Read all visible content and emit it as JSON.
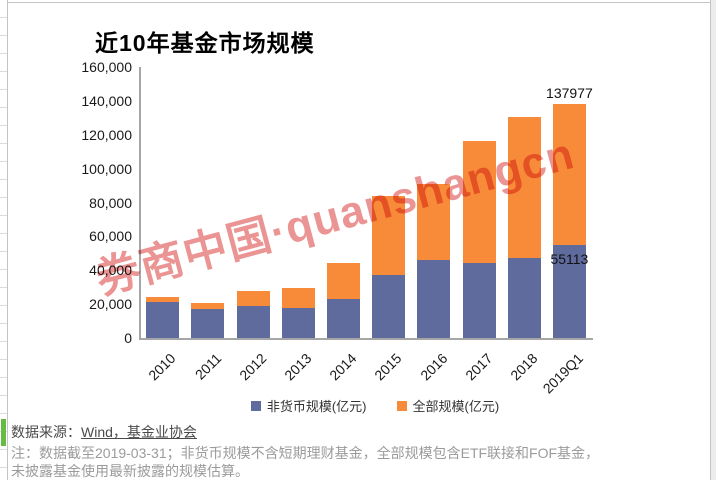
{
  "watermark": "券商中国·quanshangcn",
  "chart_data": {
    "type": "bar",
    "title": "近10年基金市场规模",
    "bar_style": "overlapped — total bar behind, non-monetary bar in front",
    "categories": [
      "2010",
      "2011",
      "2012",
      "2013",
      "2014",
      "2015",
      "2016",
      "2017",
      "2018",
      "2019Q1"
    ],
    "series": [
      {
        "name": "非货币规模(亿元)",
        "color": "#5F6B9D",
        "values": [
          21200,
          17100,
          18900,
          17700,
          23000,
          37200,
          46000,
          44300,
          47200,
          55113
        ]
      },
      {
        "name": "全部规模(亿元)",
        "color": "#F88B3A",
        "values": [
          24200,
          20700,
          27700,
          29500,
          44300,
          83800,
          90900,
          116300,
          130400,
          137977
        ]
      }
    ],
    "y_axis": {
      "min": 0,
      "max": 160000,
      "step": 20000,
      "tick_labels": [
        "160,000",
        "140,000",
        "120,000",
        "100,000",
        "80,000",
        "60,000",
        "40,000",
        "20,000",
        "0"
      ]
    },
    "x_axis": {
      "label_rotation_deg": 45
    },
    "gridlines": false,
    "legend_position": "bottom",
    "data_labels": [
      {
        "text": "137977",
        "category": "2019Q1",
        "series": "全部规模(亿元)",
        "placement": "above-bar"
      },
      {
        "text": "55113",
        "category": "2019Q1",
        "series": "非货币规模(亿元)",
        "placement": "top-of-bar"
      }
    ]
  },
  "footer": {
    "source_prefix": "数据来源：",
    "source_text": "Wind，基金业协会",
    "note_line1": "注：数据截至2019-03-31；非货币规模不含短期理财基金，全部规模包含ETF联接和FOF基金，",
    "note_line2": "未披露基金使用最新披露的规模估算。"
  },
  "colors": {
    "bar_blue": "#5F6B9D",
    "bar_orange": "#F88B3A",
    "watermark_red": "#DB3B3B",
    "axis_line": "#A6A6A6",
    "green_marker": "#66BB44",
    "source_gray": "#4A4A4A",
    "note_gray": "#9B9B9B"
  }
}
